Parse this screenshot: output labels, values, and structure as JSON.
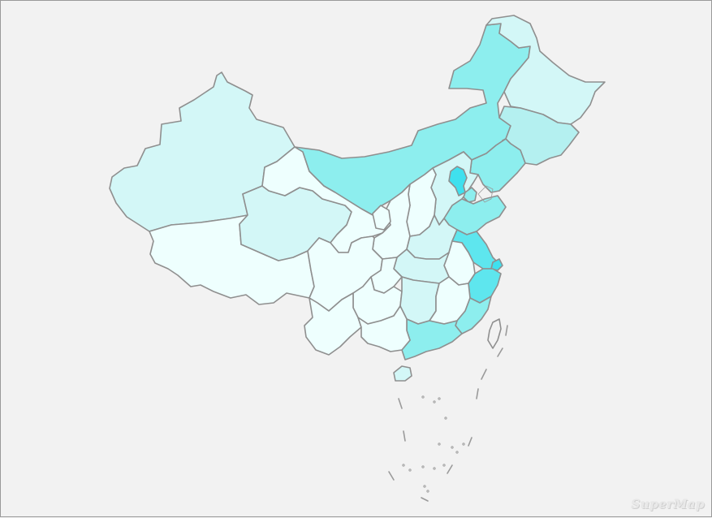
{
  "map": {
    "colors": {
      "background": "#f2f2f2",
      "border": "#8f8f8f",
      "level_1": "#eefffe",
      "level_2": "#d3f7f7",
      "level_3": "#b4f0f0",
      "level_4": "#8deeee",
      "level_5": "#5ee6ee",
      "level_6": "#3fe0ee"
    },
    "regions": [
      {
        "id": "xinjiang",
        "level": 2
      },
      {
        "id": "tibet",
        "level": 1
      },
      {
        "id": "qinghai",
        "level": 2
      },
      {
        "id": "gansu",
        "level": 1
      },
      {
        "id": "inner-mongolia",
        "level": 4
      },
      {
        "id": "heilongjiang",
        "level": 2
      },
      {
        "id": "jilin",
        "level": 3
      },
      {
        "id": "liaoning",
        "level": 4
      },
      {
        "id": "beijing",
        "level": 6
      },
      {
        "id": "tianjin",
        "level": 4
      },
      {
        "id": "hebei",
        "level": 2
      },
      {
        "id": "shanxi",
        "level": 1
      },
      {
        "id": "shaanxi",
        "level": 1
      },
      {
        "id": "ningxia",
        "level": 1
      },
      {
        "id": "shandong",
        "level": 4
      },
      {
        "id": "henan",
        "level": 2
      },
      {
        "id": "jiangsu",
        "level": 5
      },
      {
        "id": "shanghai",
        "level": 6
      },
      {
        "id": "anhui",
        "level": 1
      },
      {
        "id": "zhejiang",
        "level": 5
      },
      {
        "id": "hubei",
        "level": 2
      },
      {
        "id": "sichuan",
        "level": 1
      },
      {
        "id": "chongqing",
        "level": 1
      },
      {
        "id": "guizhou",
        "level": 1
      },
      {
        "id": "yunnan",
        "level": 1
      },
      {
        "id": "hunan",
        "level": 2
      },
      {
        "id": "jiangxi",
        "level": 1
      },
      {
        "id": "fujian",
        "level": 4
      },
      {
        "id": "guangdong",
        "level": 4
      },
      {
        "id": "guangxi",
        "level": 1
      },
      {
        "id": "hainan",
        "level": 2
      },
      {
        "id": "taiwan",
        "level": 0
      }
    ]
  },
  "watermark": {
    "text": "SuperMap"
  }
}
